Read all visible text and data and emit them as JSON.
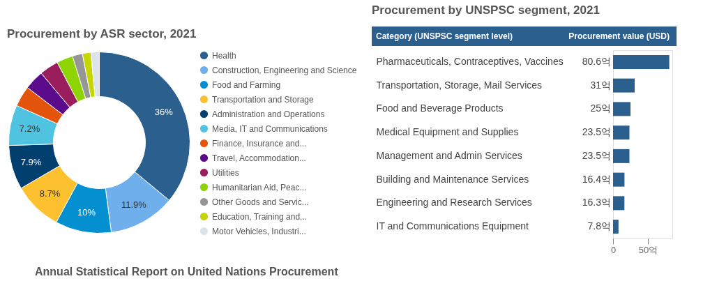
{
  "chart_data": [
    {
      "type": "donut",
      "title": "Procurement by ASR sector, 2021",
      "categories": [
        "Health",
        "Construction, Engineering and Science",
        "Food and Farming",
        "Transportation and Storage",
        "Administration and Operations",
        "Media, IT and Communications",
        "Finance, Insurance and...",
        "Travel, Accommodation...",
        "Utilities",
        "Humanitarian Aid, Peac...",
        "Other Goods and Servic...",
        "Education, Training and...",
        "Motor Vehicles, Industri..."
      ],
      "values": [
        36,
        11.9,
        10,
        8.7,
        7.9,
        7.2,
        3.7,
        3.5,
        3.4,
        2.9,
        1.8,
        1.5,
        1.5
      ],
      "value_labels": [
        "36%",
        "11.9%",
        "10%",
        "8.7%",
        "7.9%",
        "7.2%",
        null,
        null,
        null,
        null,
        null,
        null,
        null
      ],
      "colors": [
        "#2b5f8e",
        "#6fb0ec",
        "#0490d0",
        "#fdc02f",
        "#003f6e",
        "#4fc3df",
        "#e4540c",
        "#5b0a8a",
        "#9a1d5e",
        "#8ed400",
        "#969696",
        "#c5d600",
        "#dde3ea"
      ],
      "legend": "right",
      "annotations": [
        "Annual Statistical Report on United Nations Procurement"
      ]
    },
    {
      "type": "bar",
      "orientation": "horizontal",
      "title": "Procurement by UNSPSC segment, 2021",
      "ylabel": "Category (UNSPSC segment level)",
      "xlabel": "Procurement value (USD)",
      "categories": [
        "Pharmaceuticals, Contraceptives, Vaccines",
        "Transportation, Storage, Mail Services",
        "Food and Beverage Products",
        "Medical Equipment and Supplies",
        "Management and Admin Services",
        "Building and Maintenance Services",
        "Engineering and Research Services",
        "IT and Communications Equipment"
      ],
      "values": [
        80.6,
        31,
        25,
        23.5,
        23.5,
        16.4,
        16.3,
        7.8
      ],
      "value_labels": [
        "80.6억",
        "31억",
        "25억",
        "23.5억",
        "23.5억",
        "16.4억",
        "16.3억",
        "7.8억"
      ],
      "color": "#2b5f8e",
      "xlim": [
        0,
        85
      ],
      "xticks": [
        0,
        {
          "value": 50,
          "label": "50억"
        }
      ]
    }
  ]
}
